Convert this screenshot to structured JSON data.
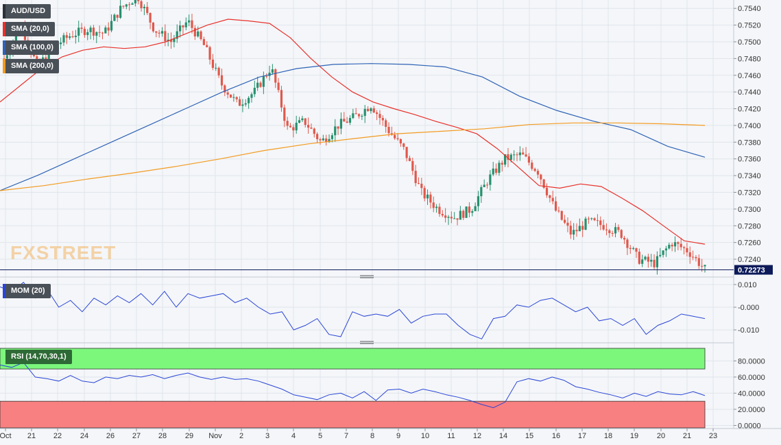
{
  "symbol": "AUD/USD",
  "indicators": {
    "sma20": "SMA (20,0)",
    "sma100": "SMA (100,0)",
    "sma200": "SMA (200,0)",
    "mom": "MOM (20)",
    "rsi": "RSI (14,70,30,1)"
  },
  "watermark": "FXSTREET",
  "colors": {
    "bull": "#27906e",
    "bear": "#e0584c",
    "sma20": "#e8302a",
    "sma100": "#2e62b5",
    "sma200": "#f39a1f",
    "mom_line": "#2a45d6",
    "rsi_line": "#2a45d6",
    "rsi_overbought_zone": "#7cf77c",
    "rsi_oversold_zone": "#f98080",
    "last_price_badge": "#0d1a5a"
  },
  "chart_data": [
    {
      "type": "candlestick",
      "title": "AUD/USD",
      "y_ticks": [
        "0.7540",
        "0.7520",
        "0.7500",
        "0.7480",
        "0.7460",
        "0.7440",
        "0.7420",
        "0.7400",
        "0.7380",
        "0.7360",
        "0.7340",
        "0.7320",
        "0.7300",
        "0.7280",
        "0.7260",
        "0.7240"
      ],
      "ylim": [
        0.7222,
        0.755
      ],
      "last_price": "0.72273",
      "last_price_value": 0.72273,
      "x_ticks": [
        "Oct",
        "21",
        "22",
        "24",
        "26",
        "27",
        "28",
        "29",
        "Nov",
        "2",
        "3",
        "4",
        "5",
        "7",
        "8",
        "9",
        "10",
        "11",
        "12",
        "14",
        "15",
        "16",
        "17",
        "18",
        "19",
        "20",
        "21",
        "23"
      ],
      "grid": true,
      "series": [
        {
          "name": "SMA (20,0)",
          "values": [
            0.7428,
            0.7448,
            0.7468,
            0.7482,
            0.749,
            0.7494,
            0.7492,
            0.7494,
            0.75,
            0.751,
            0.752,
            0.7527,
            0.7525,
            0.7522,
            0.7505,
            0.748,
            0.7458,
            0.744,
            0.7428,
            0.742,
            0.7413,
            0.7405,
            0.7398,
            0.739,
            0.7372,
            0.735,
            0.7328,
            0.7325,
            0.733,
            0.7327,
            0.7313,
            0.7298,
            0.728,
            0.7262,
            0.7258
          ]
        },
        {
          "name": "SMA (100,0)",
          "values": [
            0.7322,
            0.734,
            0.736,
            0.738,
            0.74,
            0.742,
            0.744,
            0.7458,
            0.7468,
            0.7473,
            0.7474,
            0.7473,
            0.747,
            0.7458,
            0.7435,
            0.7418,
            0.7405,
            0.7395,
            0.7375,
            0.7362
          ]
        },
        {
          "name": "SMA (200,0)",
          "values": [
            0.7322,
            0.7328,
            0.7336,
            0.7343,
            0.7351,
            0.736,
            0.737,
            0.7378,
            0.7384,
            0.739,
            0.7393,
            0.7396,
            0.7401,
            0.7403,
            0.7403,
            0.7402,
            0.74
          ]
        }
      ]
    },
    {
      "type": "line",
      "title": "MOM (20)",
      "y_ticks": [
        "0.010",
        "-0.000",
        "-0.010"
      ],
      "ylim": [
        -0.0145,
        0.0115
      ],
      "values": [
        0.009,
        0.007,
        0.011,
        0.004,
        0.008,
        0.0,
        0.003,
        -0.002,
        0.004,
        0.001,
        0.005,
        0.002,
        0.006,
        0.001,
        0.007,
        0.0,
        0.006,
        0.004,
        0.005,
        0.006,
        0.002,
        0.004,
        0.0,
        -0.003,
        -0.002,
        -0.01,
        -0.008,
        -0.005,
        -0.012,
        -0.013,
        -0.002,
        -0.004,
        -0.003,
        -0.004,
        -0.001,
        -0.007,
        -0.004,
        -0.003,
        -0.003,
        -0.008,
        -0.012,
        -0.014,
        -0.005,
        -0.004,
        0.001,
        0.0,
        0.003,
        0.004,
        0.001,
        -0.002,
        0.0,
        -0.006,
        -0.005,
        -0.008,
        -0.005,
        -0.012,
        -0.008,
        -0.006,
        -0.003,
        -0.004,
        -0.005
      ]
    },
    {
      "type": "line",
      "title": "RSI (14,70,30,1)",
      "y_ticks": [
        "80.0000",
        "60.0000",
        "40.0000",
        "20.0000",
        "0.0000"
      ],
      "ylim": [
        -3,
        99
      ],
      "overbought": 70,
      "oversold": 30,
      "values": [
        75,
        72,
        78,
        60,
        58,
        55,
        62,
        55,
        53,
        60,
        58,
        62,
        60,
        63,
        58,
        62,
        65,
        60,
        57,
        60,
        57,
        58,
        55,
        50,
        45,
        38,
        35,
        32,
        38,
        40,
        34,
        42,
        31,
        44,
        45,
        40,
        45,
        42,
        38,
        35,
        31,
        26,
        22,
        29,
        54,
        58,
        55,
        60,
        56,
        48,
        45,
        41,
        38,
        34,
        40,
        36,
        42,
        39,
        38,
        42,
        37
      ]
    }
  ]
}
